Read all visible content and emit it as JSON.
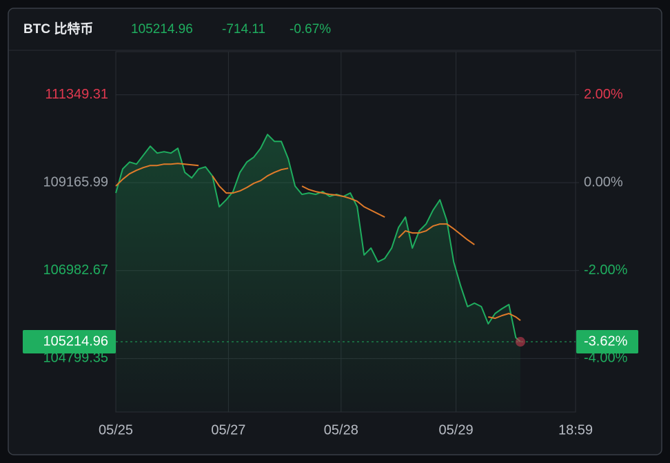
{
  "chart_data": {
    "type": "line",
    "title": "BTC 比特币",
    "header": {
      "price": 105214.96,
      "change": -714.11,
      "change_pct": {
        "value": -0.67,
        "label": "-0.67%"
      }
    },
    "current": {
      "price": 105214.96,
      "pct": {
        "value": -3.62,
        "label": "-3.62%"
      }
    },
    "up_color": "#e0384f",
    "down_color": "#1fae5f",
    "flat_color": "#9aa0a8",
    "grid": true,
    "x": [
      0,
      3,
      6,
      9,
      12,
      15,
      18,
      21,
      24,
      27,
      30,
      33,
      36,
      39,
      42,
      45,
      48,
      51,
      54,
      57,
      60,
      63,
      66,
      69,
      72,
      75,
      78,
      81,
      84,
      87,
      90,
      93,
      96,
      99,
      102,
      105,
      108,
      111,
      114,
      117,
      120,
      123,
      126,
      129,
      132,
      135,
      138,
      141,
      144,
      147,
      150,
      153,
      156,
      159,
      162,
      165,
      168,
      171,
      174,
      176
    ],
    "series": [
      {
        "color": "#1fae5f",
        "area": true,
        "values": [
          108909.5,
          109508,
          109679,
          109627.7,
          109850,
          110072.3,
          109901.3,
          109935.5,
          109901.3,
          110021,
          109422.5,
          109285.7,
          109508,
          109559.3,
          109337,
          108567.5,
          108738.5,
          108943.7,
          109422.5,
          109679,
          109798.7,
          110021,
          110363,
          110192,
          110192,
          109764.5,
          109080.5,
          108875.3,
          108909.5,
          108875.3,
          108943.7,
          108824,
          108875.3,
          108824,
          108909.5,
          108567.5,
          107370.5,
          107541.5,
          107199.5,
          107285,
          107541.5,
          108054.5,
          108311,
          107541.5,
          107969,
          108140,
          108482,
          108738.5,
          108225.5,
          107199.5,
          106601,
          106088,
          106173.5,
          106088,
          105660.5,
          105917,
          106036.7,
          106139.3,
          105318.5,
          105214.96
        ]
      },
      {
        "color": "#e07b2a",
        "values": [
          109080.5,
          109251.5,
          109388.3,
          109473.8,
          109542.2,
          109593.5,
          109593.5,
          109627.7,
          109627.7,
          109644.8,
          109627.7,
          109610.6,
          109593.5,
          null,
          109337,
          109080.5,
          108909.5,
          108909.5,
          108960.8,
          109046.3,
          109148.9,
          109217.3,
          109337,
          109422.5,
          109490.9,
          109525.1,
          null,
          109080.5,
          108995,
          108943.7,
          108909.5,
          108875.3,
          108858.2,
          108824,
          108772.7,
          108704.3,
          108567.5,
          108482,
          108396.5,
          108311,
          null,
          107798,
          107969,
          107917.7,
          107917.7,
          107969,
          108088.7,
          108140,
          108140,
          108020.3,
          107883.5,
          107746.7,
          107627,
          null,
          105831.5,
          105797.3,
          105865.7,
          105917,
          105831.5,
          105745
        ]
      }
    ],
    "xlim": [
      0,
      200
    ],
    "xticks": [
      {
        "value": 0,
        "label": "05/25"
      },
      {
        "value": 49,
        "label": "05/27"
      },
      {
        "value": 98,
        "label": "05/28"
      },
      {
        "value": 148,
        "label": "05/29"
      },
      {
        "value": 200,
        "label": "18:59"
      }
    ],
    "ylim": [
      103470,
      112420
    ],
    "yticks": [
      111349.31,
      109165.99,
      106982.67,
      104799.35
    ],
    "y2lim": [
      -5.22,
      2.98
    ],
    "y2ticks": [
      {
        "value": 2,
        "label": "2.00%"
      },
      {
        "value": 0,
        "label": "0.00%"
      },
      {
        "value": -2,
        "label": "-2.00%"
      },
      {
        "value": -4,
        "label": "-4.00%"
      }
    ]
  }
}
